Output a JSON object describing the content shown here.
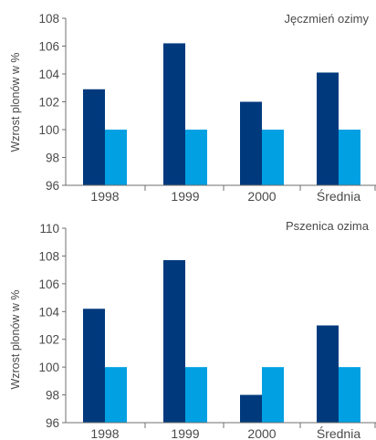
{
  "colors": {
    "series_dark": "#003a7d",
    "series_light": "#00a0e3",
    "axis": "#6f6f6f",
    "text": "#4a4a4a"
  },
  "chart_data": [
    {
      "type": "bar",
      "title": "Jęczmień ozimy",
      "ylabel": "Wzrost plonów w %",
      "xlabel": "",
      "categories": [
        "1998",
        "1999",
        "2000",
        "Średnia"
      ],
      "series": [
        {
          "values": [
            102.9,
            106.2,
            102.0,
            104.1
          ]
        },
        {
          "values": [
            100,
            100,
            100,
            100
          ]
        }
      ],
      "ylim": [
        96,
        108
      ],
      "yticks": [
        96,
        98,
        100,
        102,
        104,
        106,
        108
      ],
      "grid": false,
      "legend": "none"
    },
    {
      "type": "bar",
      "title": "Pszenica ozima",
      "ylabel": "Wzrost plonów w %",
      "xlabel": "",
      "categories": [
        "1998",
        "1999",
        "2000",
        "Średnia"
      ],
      "series": [
        {
          "values": [
            104.2,
            107.7,
            98.0,
            103.0
          ]
        },
        {
          "values": [
            100,
            100,
            100,
            100
          ]
        }
      ],
      "ylim": [
        96,
        110
      ],
      "yticks": [
        96,
        98,
        100,
        102,
        104,
        106,
        108,
        110
      ],
      "grid": false,
      "legend": "none"
    }
  ]
}
